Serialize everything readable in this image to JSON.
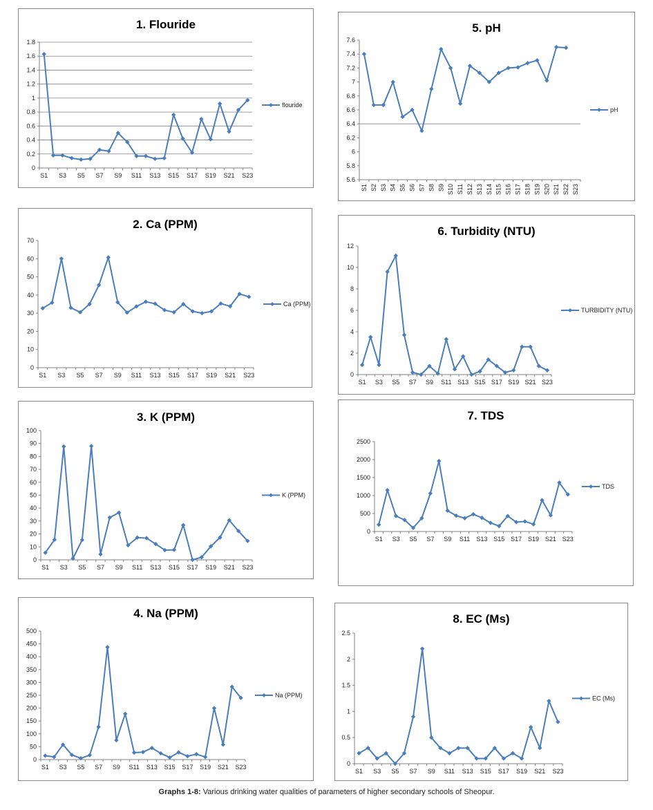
{
  "caption": {
    "label": "Graphs 1-8:",
    "text": " Various drinking water qualities of parameters of higher secondary schools of Sheopur."
  },
  "colors": {
    "series": "#4a7ebb",
    "grid": "#808080",
    "axis": "#808080"
  },
  "chart_data": [
    {
      "id": "c1",
      "type": "line",
      "title": "1. Flouride",
      "legend": "flouride",
      "ylim": [
        0,
        1.8
      ],
      "ystep": 0.2,
      "yticks": [
        "0",
        "0.2",
        "0.4",
        "0.6",
        "0.8",
        "1",
        "1.2",
        "1.4",
        "1.6",
        "1.8"
      ],
      "grid": "y-major",
      "legend_position": "right",
      "x_label_mode": "odd",
      "categories": [
        "S1",
        "S2",
        "S3",
        "S4",
        "S5",
        "S6",
        "S7",
        "S8",
        "S9",
        "S10",
        "S11",
        "S12",
        "S13",
        "S14",
        "S15",
        "S16",
        "S17",
        "S18",
        "S19",
        "S20",
        "S21",
        "S22",
        "S23"
      ],
      "values": [
        1.63,
        0.18,
        0.18,
        0.14,
        0.12,
        0.13,
        0.26,
        0.24,
        0.5,
        0.37,
        0.17,
        0.17,
        0.13,
        0.14,
        0.76,
        0.42,
        0.22,
        0.7,
        0.41,
        0.92,
        0.52,
        0.83,
        0.97
      ]
    },
    {
      "id": "c2",
      "type": "line",
      "title": "2. Ca (PPM)",
      "legend": "Ca (PPM)",
      "ylim": [
        0,
        70
      ],
      "ystep": 10,
      "yticks": [
        "0",
        "10",
        "20",
        "30",
        "40",
        "50",
        "60",
        "70"
      ],
      "grid": "none",
      "legend_position": "right",
      "x_label_mode": "odd",
      "categories": [
        "S1",
        "S2",
        "S3",
        "S4",
        "S5",
        "S6",
        "S7",
        "S8",
        "S9",
        "S10",
        "S11",
        "S12",
        "S13",
        "S14",
        "S15",
        "S16",
        "S17",
        "S18",
        "S19",
        "S20",
        "S21",
        "S22",
        "S23"
      ],
      "values": [
        32.7,
        35.8,
        60,
        33,
        30.5,
        35,
        45.5,
        60.7,
        36,
        30.3,
        33.7,
        36.3,
        35.2,
        31.7,
        30.5,
        35,
        31,
        30,
        31,
        35.3,
        33.8,
        40.6,
        39
      ]
    },
    {
      "id": "c3",
      "type": "line",
      "title": "3. K (PPM)",
      "legend": "K (PPM)",
      "ylim": [
        0,
        100
      ],
      "ystep": 10,
      "yticks": [
        "0",
        "10",
        "20",
        "30",
        "40",
        "50",
        "60",
        "70",
        "80",
        "90",
        "100"
      ],
      "grid": "none",
      "legend_position": "right",
      "x_label_mode": "odd",
      "categories": [
        "S1",
        "S2",
        "S3",
        "S4",
        "S5",
        "S6",
        "S7",
        "S8",
        "S9",
        "S10",
        "S11",
        "S12",
        "S13",
        "S14",
        "S15",
        "S16",
        "S17",
        "S18",
        "S19",
        "S20",
        "S21",
        "S22",
        "S23"
      ],
      "values": [
        5.5,
        15.6,
        87.7,
        1,
        15.4,
        88,
        4.3,
        32.7,
        36.5,
        11.3,
        17.2,
        16.8,
        12.2,
        7.5,
        7.7,
        26.8,
        0,
        2,
        10.4,
        17.3,
        30.6,
        22.3,
        14.6
      ]
    },
    {
      "id": "c4",
      "type": "line",
      "title": "4. Na (PPM)",
      "legend": "Na (PPM)",
      "ylim": [
        0,
        500
      ],
      "ystep": 50,
      "yticks": [
        "0",
        "50",
        "100",
        "150",
        "200",
        "250",
        "300",
        "350",
        "400",
        "450",
        "500"
      ],
      "grid": "none",
      "legend_position": "right",
      "x_label_mode": "odd",
      "categories": [
        "S1",
        "S2",
        "S3",
        "S4",
        "S5",
        "S6",
        "S7",
        "S8",
        "S9",
        "S10",
        "S11",
        "S12",
        "S13",
        "S14",
        "S15",
        "S16",
        "S17",
        "S18",
        "S19",
        "S20",
        "S21",
        "S22",
        "S23"
      ],
      "values": [
        15,
        10,
        58,
        18,
        5,
        17,
        127,
        437,
        75,
        178,
        27,
        29,
        45,
        24,
        8,
        28,
        13,
        21,
        10,
        200,
        58,
        283,
        240
      ]
    },
    {
      "id": "c5",
      "type": "line",
      "title": "5. pH",
      "legend": "pH",
      "ylim": [
        5.6,
        7.6
      ],
      "ystep": 0.2,
      "yticks": [
        "5.6",
        "5.8",
        "6",
        "6.2",
        "6.4",
        "6.6",
        "6.8",
        "7",
        "7.2",
        "7.4",
        "7.6"
      ],
      "grid": "single-6.4",
      "legend_position": "right",
      "x_label_mode": "all-rotated",
      "categories": [
        "S1",
        "S2",
        "S3",
        "S4",
        "S5",
        "S6",
        "S7",
        "S8",
        "S9",
        "S10",
        "S11",
        "S12",
        "S13",
        "S14",
        "S15",
        "S16",
        "S17",
        "S18",
        "S19",
        "S20",
        "S21",
        "S22",
        "S23"
      ],
      "values": [
        7.4,
        6.67,
        6.67,
        7,
        6.5,
        6.6,
        6.3,
        6.9,
        7.47,
        7.2,
        6.69,
        7.23,
        7.13,
        7,
        7.13,
        7.2,
        7.21,
        7.27,
        7.31,
        7.02,
        7.5,
        7.49,
        null
      ]
    },
    {
      "id": "c6",
      "type": "line",
      "title": "6. Turbidity (NTU)",
      "legend": "TURBIDITY (NTU)",
      "ylim": [
        0,
        12
      ],
      "ystep": 2,
      "yticks": [
        "0",
        "2",
        "4",
        "6",
        "8",
        "10",
        "12"
      ],
      "grid": "none",
      "legend_position": "right",
      "x_label_mode": "odd",
      "categories": [
        "S1",
        "S2",
        "S3",
        "S4",
        "S5",
        "S6",
        "S7",
        "S8",
        "S9",
        "S10",
        "S11",
        "S12",
        "S13",
        "S14",
        "S15",
        "S16",
        "S17",
        "S18",
        "S19",
        "S20",
        "S21",
        "S22",
        "S23"
      ],
      "values": [
        0.9,
        3.5,
        0.9,
        9.6,
        11.1,
        3.7,
        0.2,
        0,
        0.8,
        0.1,
        3.3,
        0.5,
        1.7,
        0,
        0.3,
        1.4,
        0.8,
        0.2,
        0.4,
        2.6,
        2.6,
        0.8,
        0.4
      ]
    },
    {
      "id": "c7",
      "type": "line",
      "title": "7. TDS",
      "legend": "TDS",
      "ylim": [
        0,
        2500
      ],
      "ystep": 500,
      "yticks": [
        "0",
        "500",
        "1000",
        "1500",
        "2000",
        "2500"
      ],
      "grid": "none",
      "legend_position": "right",
      "x_label_mode": "odd",
      "categories": [
        "S1",
        "S2",
        "S3",
        "S4",
        "S5",
        "S6",
        "S7",
        "S8",
        "S9",
        "S10",
        "S11",
        "S12",
        "S13",
        "S14",
        "S15",
        "S16",
        "S17",
        "S18",
        "S19",
        "S20",
        "S21",
        "S22",
        "S23"
      ],
      "values": [
        190,
        1150,
        430,
        320,
        100,
        370,
        1060,
        1960,
        580,
        440,
        370,
        480,
        380,
        240,
        150,
        430,
        260,
        280,
        200,
        870,
        450,
        1360,
        1030
      ]
    },
    {
      "id": "c8",
      "type": "line",
      "title": "8. EC (Ms)",
      "legend": "EC (Ms)",
      "ylim": [
        0,
        2.5
      ],
      "ystep": 0.5,
      "yticks": [
        "0",
        "0.5",
        "1",
        "1.5",
        "2",
        "2.5"
      ],
      "grid": "none",
      "legend_position": "right",
      "x_label_mode": "odd",
      "categories": [
        "S1",
        "S2",
        "S3",
        "S4",
        "S5",
        "S6",
        "S7",
        "S8",
        "S9",
        "S10",
        "S11",
        "S12",
        "S13",
        "S14",
        "S15",
        "S16",
        "S17",
        "S18",
        "S19",
        "S20",
        "S21",
        "S22",
        "S23"
      ],
      "values": [
        0.2,
        0.3,
        0.1,
        0.2,
        0,
        0.2,
        0.9,
        2.2,
        0.5,
        0.3,
        0.2,
        0.3,
        0.3,
        0.1,
        0.1,
        0.3,
        0.1,
        0.2,
        0.1,
        0.7,
        0.3,
        1.2,
        0.8
      ]
    }
  ]
}
